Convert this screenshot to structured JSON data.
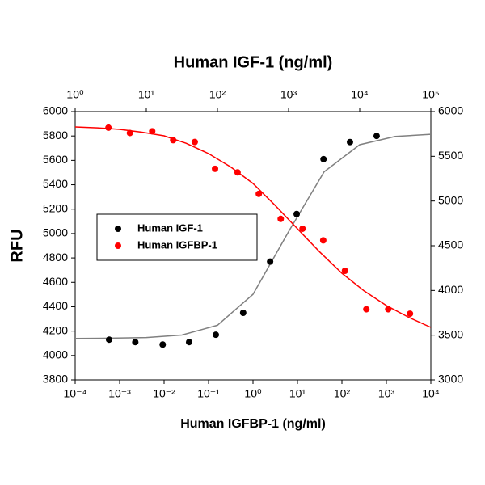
{
  "chart_data": {
    "type": "scatter",
    "x2label": "Human IGF-1 (ng/ml)",
    "xlabel": "Human IGFBP-1 (ng/ml)",
    "ylabel": "RFU",
    "xscale": "log",
    "xlim": [
      0.0001,
      10000
    ],
    "xticks": [
      {
        "value": 0.0001,
        "label": "10⁻⁴"
      },
      {
        "value": 0.001,
        "label": "10⁻³"
      },
      {
        "value": 0.01,
        "label": "10⁻²"
      },
      {
        "value": 0.1,
        "label": "10⁻¹"
      },
      {
        "value": 1,
        "label": "10⁰"
      },
      {
        "value": 10,
        "label": "10¹"
      },
      {
        "value": 100,
        "label": "10²"
      },
      {
        "value": 1000,
        "label": "10³"
      },
      {
        "value": 10000,
        "label": "10⁴"
      }
    ],
    "x2lim": [
      1,
      100000
    ],
    "x2ticks": [
      {
        "value": 1,
        "label": "10⁰"
      },
      {
        "value": 10,
        "label": "10¹"
      },
      {
        "value": 100,
        "label": "10²"
      },
      {
        "value": 1000,
        "label": "10³"
      },
      {
        "value": 10000,
        "label": "10⁴"
      },
      {
        "value": 100000,
        "label": "10⁵"
      }
    ],
    "ylim": [
      3800,
      6000
    ],
    "yticks": [
      3800,
      4000,
      4200,
      4400,
      4600,
      4800,
      5000,
      5200,
      5400,
      5600,
      5800,
      6000
    ],
    "y2lim": [
      3000,
      6000
    ],
    "y2ticks": [
      3000,
      3500,
      4000,
      4500,
      5000,
      5500,
      6000
    ],
    "legend": "center-left",
    "series": [
      {
        "name": "Human IGF-1",
        "color": "#000000",
        "xaxis": "x2",
        "axis": "y",
        "x": [
          3,
          7,
          17,
          40,
          95,
          230,
          550,
          1300,
          3100,
          7300,
          17300
        ],
        "values": [
          4130,
          4110,
          4090,
          4110,
          4170,
          4350,
          4770,
          5160,
          5610,
          5750,
          5800
        ],
        "fit": {
          "color": "#808080",
          "x": [
            1,
            3.16,
            10,
            31.6,
            100,
            316,
            1000,
            3160,
            10000,
            31600,
            100000
          ],
          "values": [
            4140,
            4142,
            4147,
            4168,
            4248,
            4502,
            5015,
            5506,
            5728,
            5796,
            5814
          ]
        }
      },
      {
        "name": "Human IGFBP-1",
        "color": "#ff0000",
        "xaxis": "x",
        "axis": "y2",
        "x": [
          0.00056,
          0.0017,
          0.0054,
          0.016,
          0.049,
          0.14,
          0.45,
          1.35,
          4.2,
          13,
          38,
          117,
          354,
          1100,
          3400
        ],
        "values": [
          5820,
          5760,
          5780,
          5680,
          5660,
          5360,
          5320,
          5080,
          4800,
          4690,
          4560,
          4220,
          3790,
          3790,
          3740
        ],
        "fit": {
          "color": "#ff0000",
          "x": [
            0.0001,
            0.000316,
            0.001,
            0.00316,
            0.01,
            0.0316,
            0.1,
            0.316,
            1,
            3.16,
            10,
            31.6,
            100,
            316,
            1000,
            3160,
            10000
          ],
          "values": [
            5828,
            5818,
            5801,
            5770,
            5729,
            5645,
            5530,
            5380,
            5196,
            4950,
            4690,
            4430,
            4193,
            3995,
            3831,
            3700,
            3587
          ]
        }
      }
    ]
  }
}
